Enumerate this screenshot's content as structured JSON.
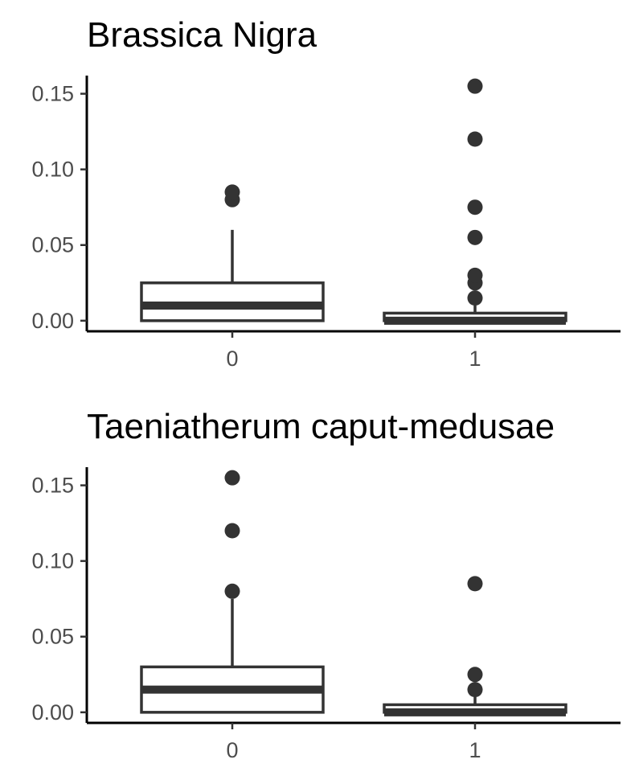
{
  "chart_data": [
    {
      "type": "box",
      "title": "Brassica Nigra",
      "xlabel": "",
      "ylabel": "",
      "categories": [
        "0",
        "1"
      ],
      "yticks": [
        "0.00",
        "0.05",
        "0.10",
        "0.15"
      ],
      "ylim": [
        -0.007,
        0.162
      ],
      "grid": false,
      "boxes": [
        {
          "category": "0",
          "q1": 0.0,
          "median": 0.01,
          "q3": 0.025,
          "whisker_low": 0.0,
          "whisker_high": 0.06,
          "outliers": [
            0.08,
            0.085
          ]
        },
        {
          "category": "1",
          "q1": 0.0,
          "median": 0.0,
          "q3": 0.005,
          "whisker_low": 0.0,
          "whisker_high": 0.01,
          "outliers": [
            0.015,
            0.025,
            0.03,
            0.055,
            0.075,
            0.12,
            0.155
          ]
        }
      ]
    },
    {
      "type": "box",
      "title": "Taeniatherum caput-medusae",
      "xlabel": "",
      "ylabel": "",
      "categories": [
        "0",
        "1"
      ],
      "yticks": [
        "0.00",
        "0.05",
        "0.10",
        "0.15"
      ],
      "ylim": [
        -0.007,
        0.162
      ],
      "grid": false,
      "boxes": [
        {
          "category": "0",
          "q1": 0.0,
          "median": 0.015,
          "q3": 0.03,
          "whisker_low": 0.0,
          "whisker_high": 0.075,
          "outliers": [
            0.08,
            0.12,
            0.155
          ]
        },
        {
          "category": "1",
          "q1": 0.0,
          "median": 0.0,
          "q3": 0.005,
          "whisker_low": 0.0,
          "whisker_high": 0.01,
          "outliers": [
            0.015,
            0.025,
            0.085
          ]
        }
      ]
    }
  ],
  "colors": {
    "box_stroke": "#333333",
    "box_fill": "#ffffff",
    "outlier": "#333333",
    "axis": "#000000",
    "tick_label": "#4d4d4d",
    "title": "#000000"
  }
}
